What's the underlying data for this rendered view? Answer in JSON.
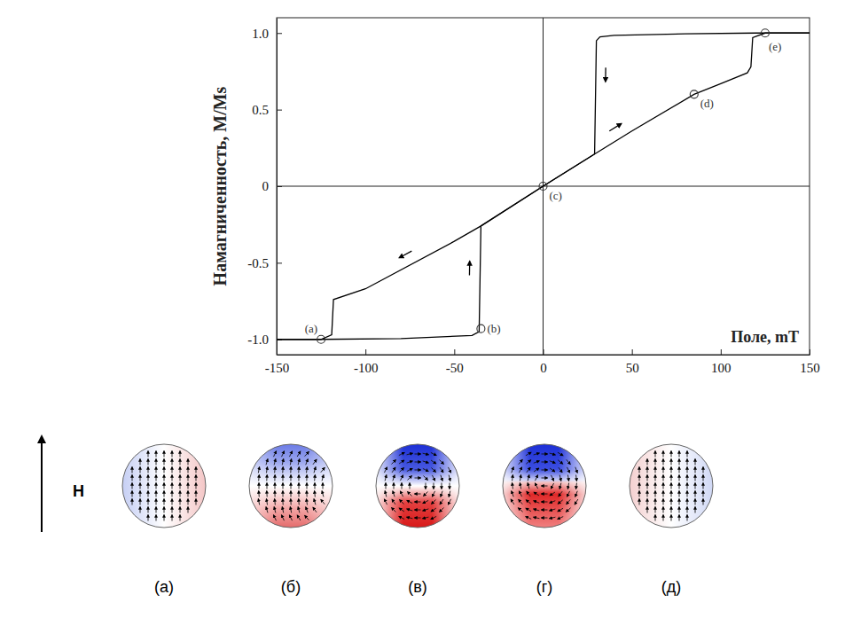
{
  "chart_data": {
    "type": "line",
    "y_label": "Намагниченность, M/Ms",
    "x_label": "Поле, mT",
    "xlim": [
      -150,
      150
    ],
    "ylim": [
      -1.1,
      1.1
    ],
    "xticks": [
      -150,
      -100,
      -50,
      0,
      50,
      100,
      150
    ],
    "yticks": [
      {
        "value": -1,
        "label": "-1.0"
      },
      -0.5,
      0,
      0.5,
      {
        "value": 1,
        "label": "1.0"
      }
    ],
    "series": [
      {
        "color": "#000000",
        "x": [
          150,
          120,
          80,
          40,
          32,
          30,
          29,
          0,
          -35,
          -50,
          -100,
          -118,
          -119,
          -125,
          -150
        ],
        "values": [
          1.0,
          1.0,
          0.995,
          0.985,
          0.975,
          0.95,
          0.21,
          0,
          -0.26,
          -0.36,
          -0.67,
          -0.74,
          -0.97,
          -1.0,
          -1.0
        ]
      },
      {
        "color": "#000000",
        "x": [
          -150,
          -125,
          -80,
          -40,
          -36,
          -35,
          0,
          29,
          50,
          85,
          100,
          115,
          117,
          118,
          125,
          150
        ],
        "values": [
          -1.0,
          -1.0,
          -0.995,
          -0.975,
          -0.95,
          -0.26,
          0,
          0.21,
          0.36,
          0.6,
          0.67,
          0.74,
          0.78,
          0.97,
          1.0,
          1.0
        ]
      }
    ],
    "points": [
      {
        "label": "(a)",
        "x": -125,
        "y": -1.0
      },
      {
        "label": "(b)",
        "x": -35,
        "y": -0.93
      },
      {
        "label": "(c)",
        "x": 0,
        "y": 0
      },
      {
        "label": "(d)",
        "x": 85,
        "y": 0.6
      },
      {
        "label": "(e)",
        "x": 125,
        "y": 1.0
      }
    ]
  },
  "diagrams": {
    "field_label": "H",
    "labels": [
      "(а)",
      "(б)",
      "(в)",
      "(г)",
      "(д)"
    ]
  }
}
